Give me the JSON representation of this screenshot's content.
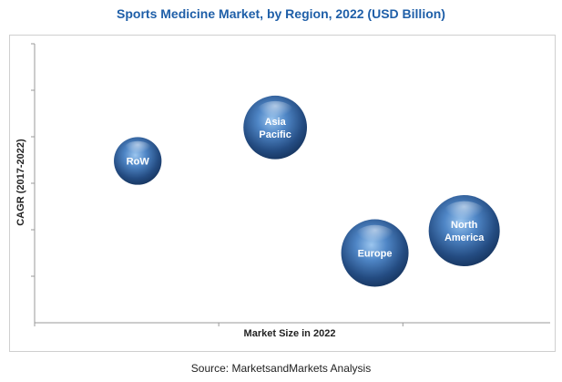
{
  "title": "Sports Medicine Market, by Region, 2022 (USD Billion)",
  "source": "Source: MarketsandMarkets Analysis",
  "chart_data": {
    "type": "bubble",
    "title": "Sports Medicine Market, by Region, 2022 (USD Billion)",
    "xlabel": "Market Size in 2022",
    "ylabel": "CAGR (2017-2022)",
    "x_ticks_count": 3,
    "y_ticks_count": 6,
    "grid": false,
    "legend": "none",
    "color": "#2e5f9e",
    "series": [
      {
        "label_lines": [
          "RoW"
        ],
        "x": 0.3,
        "y": 0.58,
        "size": 0.45
      },
      {
        "label_lines": [
          "Asia",
          "Pacific"
        ],
        "x": 0.7,
        "y": 0.7,
        "size": 0.8
      },
      {
        "label_lines": [
          "Europe"
        ],
        "x": 0.99,
        "y": 0.25,
        "size": 0.9
      },
      {
        "label_lines": [
          "North",
          "America"
        ],
        "x": 1.25,
        "y": 0.33,
        "size": 1.0
      }
    ],
    "xlim": [
      0,
      1.5
    ],
    "ylim": [
      0,
      1.0
    ]
  }
}
